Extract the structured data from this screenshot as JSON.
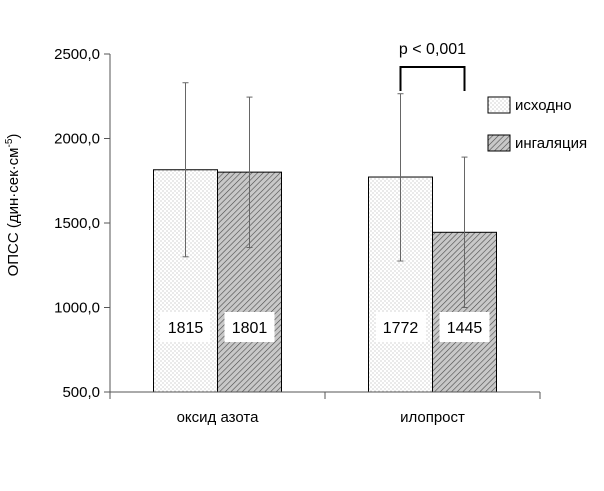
{
  "chart_data": {
    "type": "bar",
    "categories": [
      "оксид азота",
      "илопрост"
    ],
    "series": [
      {
        "name": "исходно",
        "values": [
          1815,
          1772
        ],
        "error_low": [
          1300,
          1275
        ],
        "error_high": [
          2330,
          2265
        ],
        "pattern": "dots"
      },
      {
        "name": "ингаляция",
        "values": [
          1801,
          1445
        ],
        "error_low": [
          1355,
          1000
        ],
        "error_high": [
          2245,
          1890
        ],
        "pattern": "hatch"
      }
    ],
    "data_labels": [
      "1815",
      "1801",
      "1772",
      "1445"
    ],
    "ylabel": "ОПСС (дин·сек·см",
    "ylabel_sup": "-5",
    "ylabel_close": ")",
    "ylim": [
      500,
      2500
    ],
    "yticks": [
      "500,0",
      "1000,0",
      "1500,0",
      "2000,0",
      "2500,0"
    ],
    "annotation": {
      "text": "p < 0,001",
      "category": "илопрост"
    },
    "legend_position": "right",
    "grid": false,
    "colors": {
      "dots": "#9a9a9a",
      "hatch_bg": "#c8c8c8",
      "hatch_line": "#4a4a4a",
      "edge": "#000000",
      "error": "#666666"
    }
  }
}
